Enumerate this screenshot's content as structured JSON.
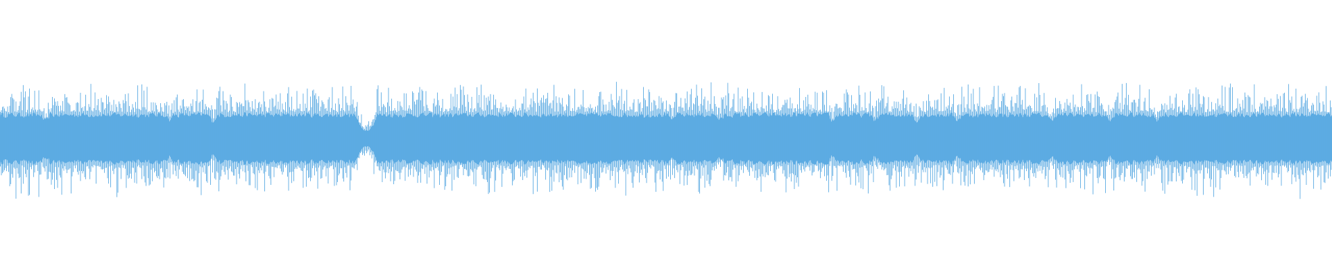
{
  "waveform": {
    "color": "#5dabe3",
    "background": "#ffffff"
  }
}
